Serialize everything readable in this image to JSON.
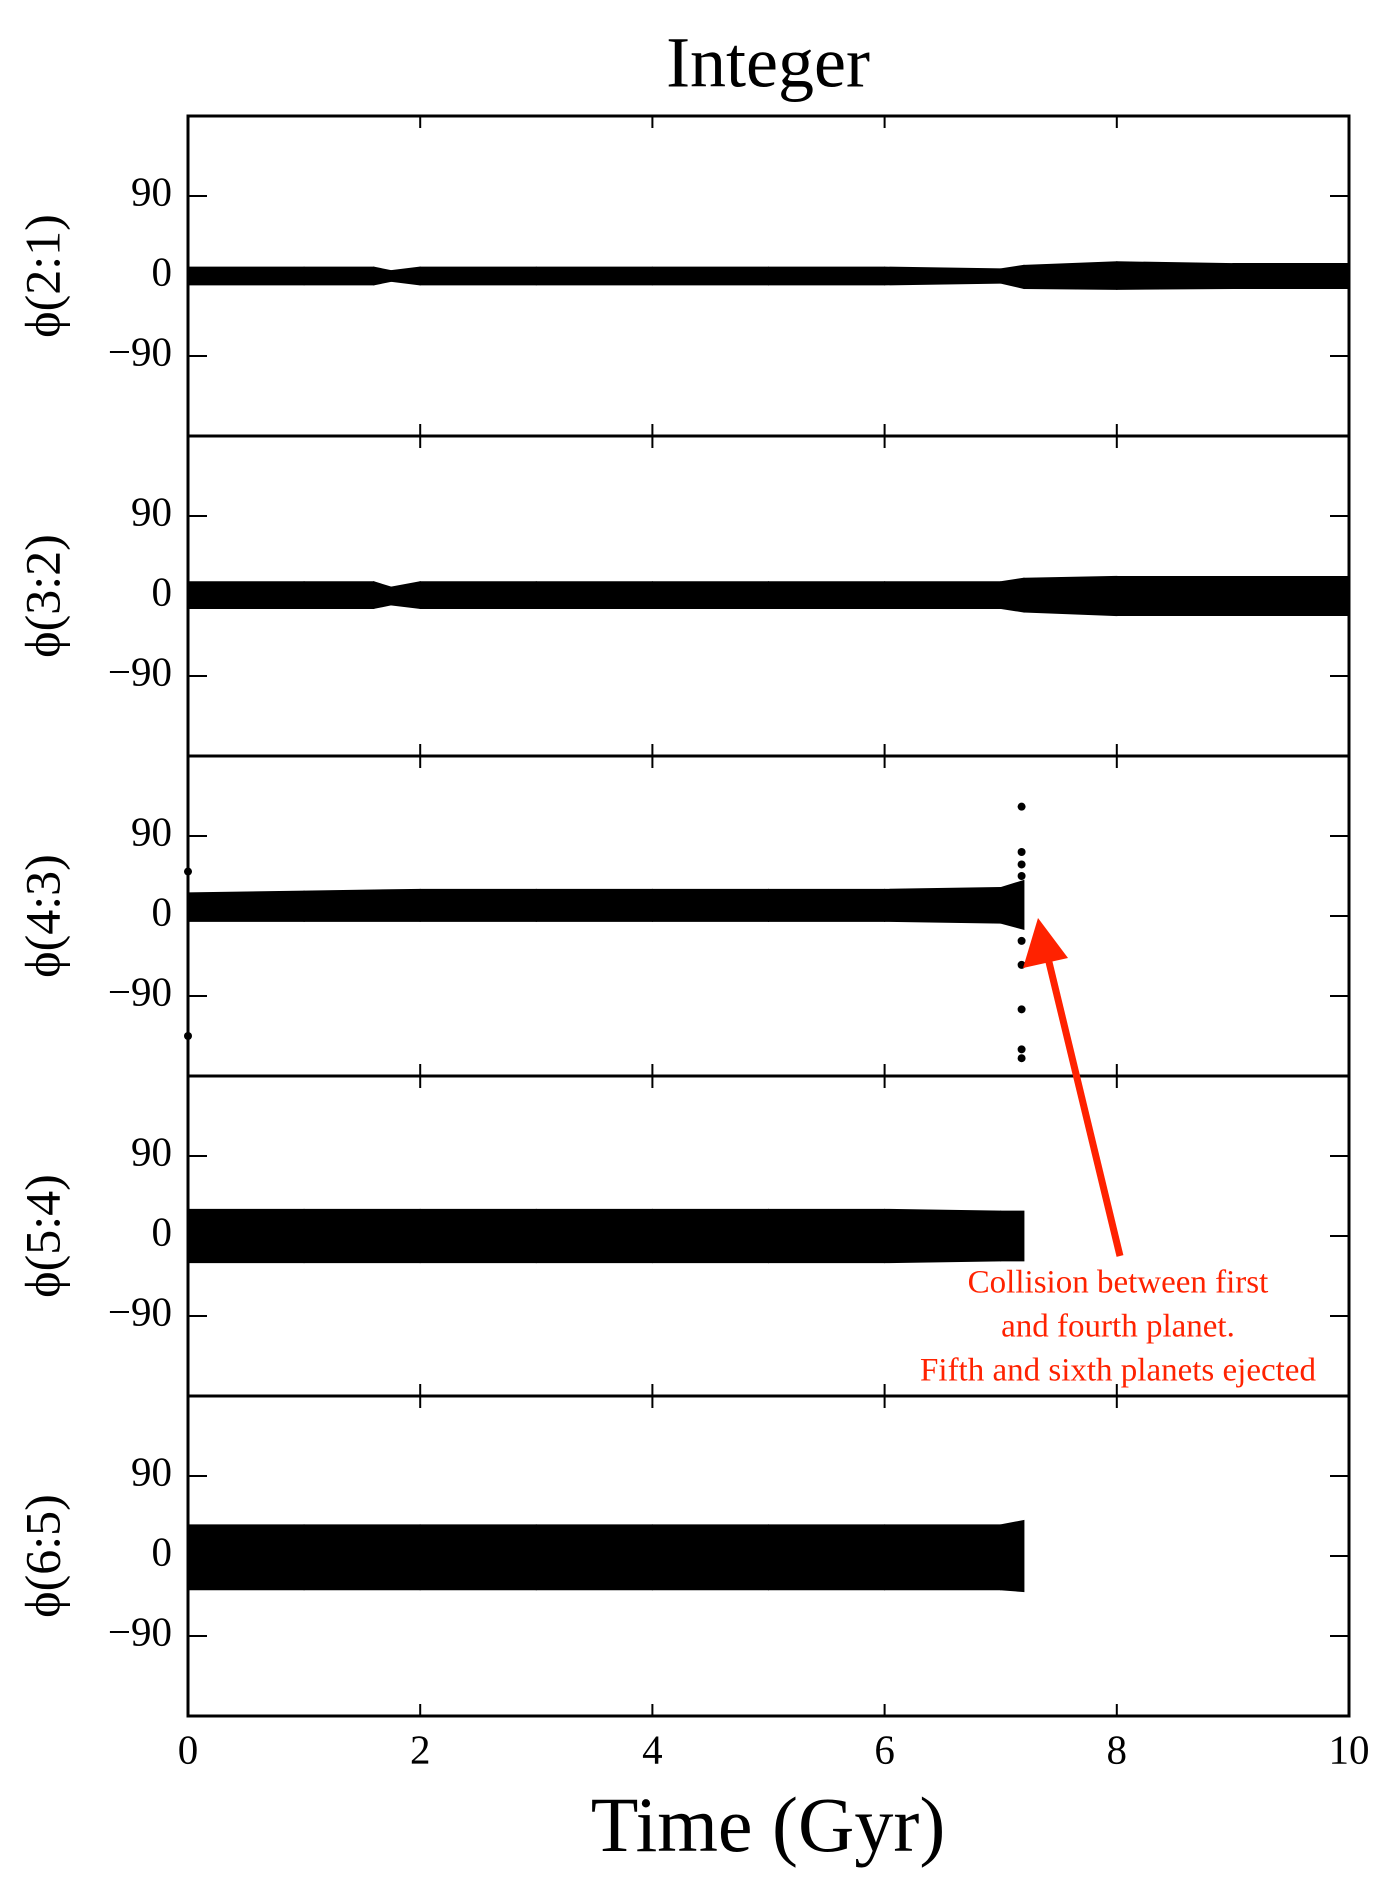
{
  "chart_data": [
    {
      "type": "band",
      "title": "Integer",
      "ylabel": "ϕ(2:1)",
      "color": "#000000",
      "x": [
        0,
        1,
        1.6,
        1.75,
        2,
        3,
        4,
        5,
        6,
        7,
        7.2,
        8,
        9,
        10
      ],
      "upper": [
        10,
        10,
        10,
        6,
        10,
        10,
        10,
        10,
        10,
        8,
        12,
        16,
        14,
        14
      ],
      "lower": [
        -10,
        -10,
        -10,
        -6,
        -10,
        -10,
        -10,
        -10,
        -10,
        -8,
        -14,
        -15,
        -14,
        -14
      ],
      "xlim": [
        0,
        10
      ],
      "xticks": [
        0,
        2,
        4,
        6,
        8,
        10
      ],
      "ylim": [
        -180,
        180
      ],
      "yticks": [
        {
          "value": 90,
          "label": "90"
        },
        0,
        {
          "value": -90,
          "label": "−90"
        }
      ]
    },
    {
      "type": "band",
      "ylabel": "ϕ(3:2)",
      "color": "#000000",
      "x": [
        0,
        1,
        1.6,
        1.75,
        2,
        3,
        4,
        5,
        6,
        7,
        7.2,
        8,
        9,
        10
      ],
      "upper": [
        16,
        16,
        16,
        10,
        16,
        16,
        16,
        16,
        16,
        16,
        20,
        22,
        22,
        22
      ],
      "lower": [
        -14,
        -14,
        -14,
        -10,
        -14,
        -14,
        -14,
        -14,
        -14,
        -14,
        -18,
        -22,
        -22,
        -22
      ],
      "xlim": [
        0,
        10
      ],
      "xticks": [
        0,
        2,
        4,
        6,
        8,
        10
      ],
      "ylim": [
        -180,
        180
      ],
      "yticks": [
        {
          "value": 90,
          "label": "90"
        },
        0,
        {
          "value": -90,
          "label": "−90"
        }
      ]
    },
    {
      "type": "band",
      "ylabel": "ϕ(4:3)",
      "color": "#000000",
      "x": [
        0,
        1,
        2,
        3,
        4,
        5,
        6,
        7,
        7.2
      ],
      "upper": [
        26,
        28,
        30,
        30,
        30,
        30,
        30,
        32,
        40
      ],
      "lower": [
        -6,
        -6,
        -6,
        -6,
        -6,
        -6,
        -6,
        -8,
        -15
      ],
      "points": {
        "x": [
          0,
          0,
          7.18,
          7.18,
          7.18,
          7.18,
          7.18,
          7.18,
          7.18,
          7.18,
          7.18
        ],
        "y": [
          50,
          -135,
          123,
          72,
          58,
          -28,
          -55,
          -105,
          -150,
          -160,
          45
        ]
      },
      "xlim": [
        0,
        10
      ],
      "xticks": [
        0,
        2,
        4,
        6,
        8,
        10
      ],
      "ylim": [
        -180,
        180
      ],
      "yticks": [
        {
          "value": 90,
          "label": "90"
        },
        0,
        {
          "value": -90,
          "label": "−90"
        }
      ]
    },
    {
      "type": "band",
      "ylabel": "ϕ(5:4)",
      "color": "#000000",
      "x": [
        0,
        1,
        2,
        3,
        4,
        5,
        6,
        7,
        7.2
      ],
      "upper": [
        30,
        30,
        30,
        30,
        30,
        30,
        30,
        28,
        28
      ],
      "lower": [
        -30,
        -30,
        -30,
        -30,
        -30,
        -30,
        -30,
        -28,
        -28
      ],
      "annotation": {
        "lines": [
          "Collision between first",
          "and fourth planet.",
          "Fifth and sixth planets ejected"
        ],
        "color": "#ff2200"
      },
      "xlim": [
        0,
        10
      ],
      "xticks": [
        0,
        2,
        4,
        6,
        8,
        10
      ],
      "ylim": [
        -180,
        180
      ],
      "yticks": [
        {
          "value": 90,
          "label": "90"
        },
        0,
        {
          "value": -90,
          "label": "−90"
        }
      ]
    },
    {
      "type": "band",
      "ylabel": "ϕ(6:5)",
      "color": "#000000",
      "xlabel": "Time (Gyr)",
      "x": [
        0,
        1,
        2,
        3,
        4,
        5,
        6,
        7,
        7.2
      ],
      "upper": [
        35,
        35,
        35,
        35,
        35,
        35,
        35,
        35,
        40
      ],
      "lower": [
        -38,
        -38,
        -38,
        -38,
        -38,
        -38,
        -38,
        -38,
        -40
      ],
      "xlim": [
        0,
        10
      ],
      "xticks": [
        0,
        2,
        4,
        6,
        8,
        10
      ],
      "ylim": [
        -180,
        180
      ],
      "yticks": [
        {
          "value": 90,
          "label": "90"
        },
        0,
        {
          "value": -90,
          "label": "−90"
        }
      ]
    }
  ]
}
